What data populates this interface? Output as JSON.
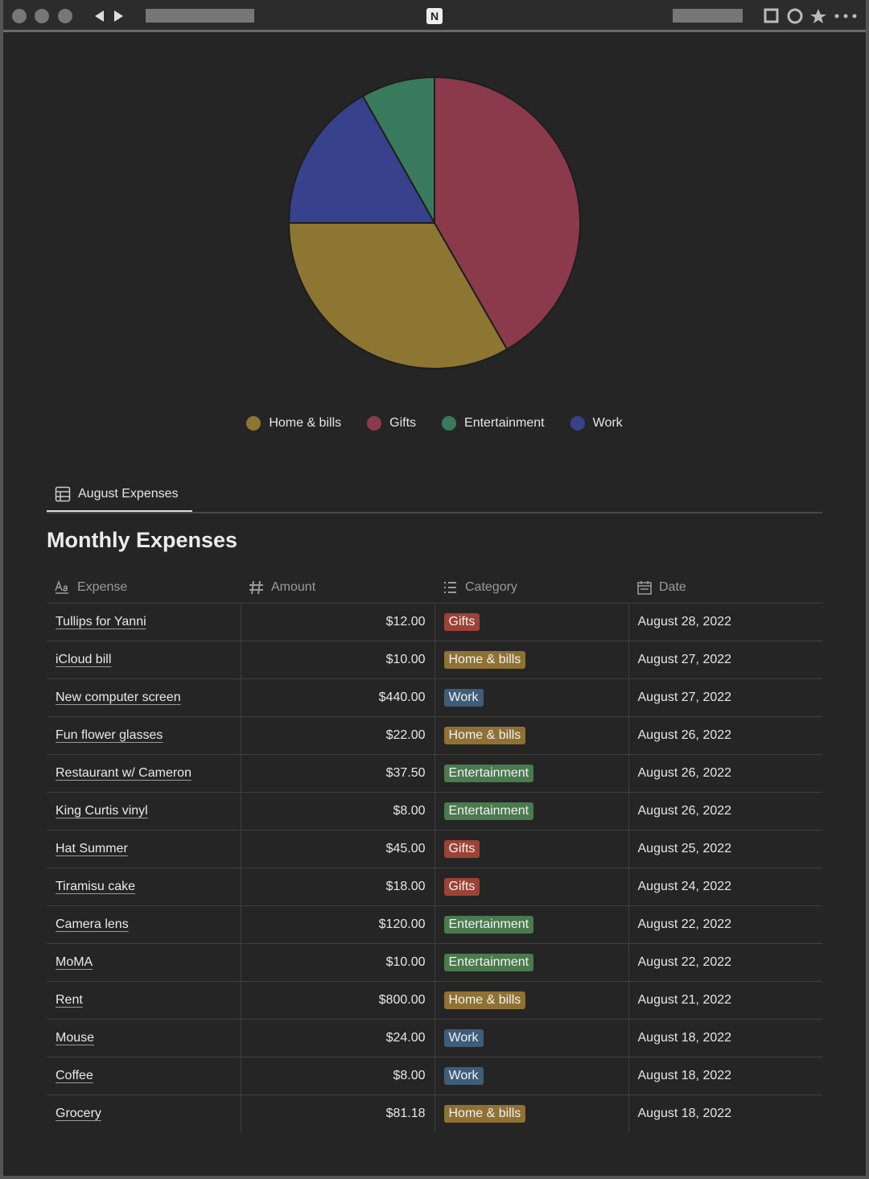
{
  "chart_data": {
    "type": "pie",
    "categories": [
      "Home & bills",
      "Gifts",
      "Entertainment",
      "Work"
    ],
    "values": [
      33.3,
      41.7,
      8.2,
      16.8
    ],
    "colors": [
      "#8c7632",
      "#8b3a4c",
      "#3a7a5c",
      "#37418c"
    ]
  },
  "view_tab": "August Expenses",
  "table": {
    "title": "Monthly Expenses",
    "columns": [
      "Expense",
      "Amount",
      "Category",
      "Date"
    ],
    "rows": [
      [
        "Tullips for Yanni",
        "$12.00",
        "Gifts",
        "August 28, 2022"
      ],
      [
        "iCloud bill",
        "$10.00",
        "Home & bills",
        "August 27, 2022"
      ],
      [
        "New computer screen",
        "$440.00",
        "Work",
        "August 27, 2022"
      ],
      [
        "Fun flower glasses",
        "$22.00",
        "Home & bills",
        "August 26, 2022"
      ],
      [
        "Restaurant w/ Cameron",
        "$37.50",
        "Entertainment",
        "August 26, 2022"
      ],
      [
        "King Curtis vinyl",
        "$8.00",
        "Entertainment",
        "August 26, 2022"
      ],
      [
        "Hat Summer",
        "$45.00",
        "Gifts",
        "August 25, 2022"
      ],
      [
        "Tiramisu cake",
        "$18.00",
        "Gifts",
        "August 24, 2022"
      ],
      [
        "Camera lens",
        "$120.00",
        "Entertainment",
        "August 22, 2022"
      ],
      [
        "MoMA",
        "$10.00",
        "Entertainment",
        "August 22, 2022"
      ],
      [
        "Rent",
        "$800.00",
        "Home & bills",
        "August 21, 2022"
      ],
      [
        "Mouse",
        "$24.00",
        "Work",
        "August 18, 2022"
      ],
      [
        "Coffee",
        "$8.00",
        "Work",
        "August 18, 2022"
      ],
      [
        "Grocery",
        "$81.18",
        "Home & bills",
        "August 18, 2022"
      ]
    ]
  }
}
